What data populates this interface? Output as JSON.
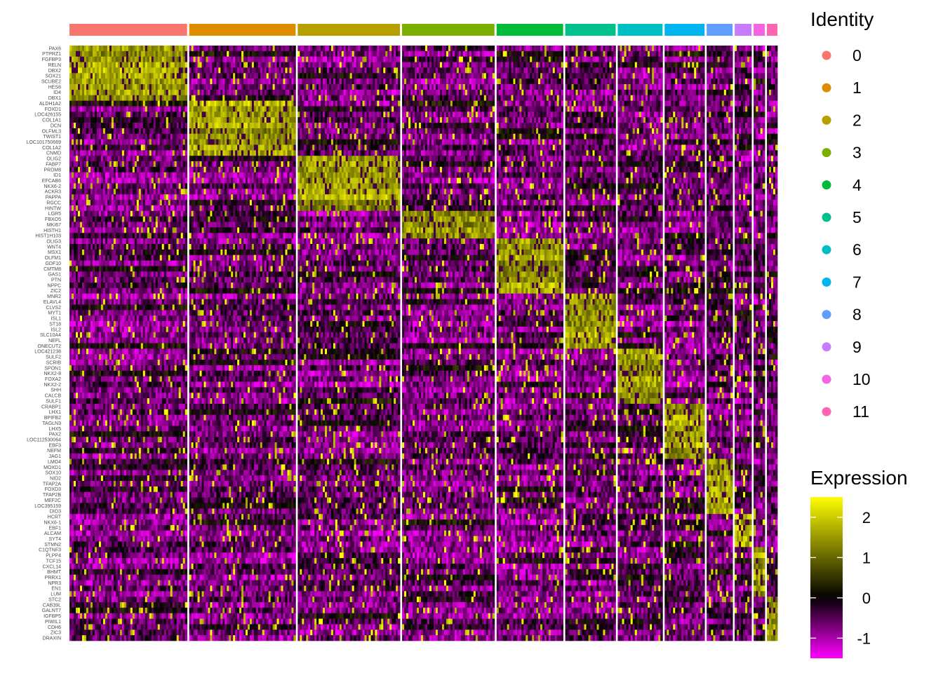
{
  "chart_data": {
    "type": "heatmap",
    "identity_legend_title": "Identity",
    "expression_legend_title": "Expression",
    "clusters": [
      {
        "name": "0",
        "color": "#F8766D",
        "weight": 168
      },
      {
        "name": "1",
        "color": "#DE8C00",
        "weight": 152
      },
      {
        "name": "2",
        "color": "#B79F00",
        "weight": 146
      },
      {
        "name": "3",
        "color": "#7CAE00",
        "weight": 132
      },
      {
        "name": "4",
        "color": "#00BA38",
        "weight": 95
      },
      {
        "name": "5",
        "color": "#00C08B",
        "weight": 72
      },
      {
        "name": "6",
        "color": "#00BFC4",
        "weight": 64
      },
      {
        "name": "7",
        "color": "#00B4F0",
        "weight": 57
      },
      {
        "name": "8",
        "color": "#619CFF",
        "weight": 37
      },
      {
        "name": "9",
        "color": "#C77CFF",
        "weight": 24
      },
      {
        "name": "10",
        "color": "#F564E3",
        "weight": 16
      },
      {
        "name": "11",
        "color": "#FF64B0",
        "weight": 15
      }
    ],
    "genes": [
      "PAX6",
      "PTPRZ1",
      "FGFBP3",
      "RELN",
      "DBX2",
      "SOX21",
      "SCUBE2",
      "HES6",
      "ID4",
      "DBX1",
      "ALDH1A2",
      "FOXD1",
      "LOC426155",
      "COL1A1",
      "DCN",
      "OLFML3",
      "TWIST1",
      "LOC101750669",
      "COL1A2",
      "CNMD",
      "OLIG2",
      "FABP7",
      "PRDM8",
      "ID1",
      "EFCAB6",
      "NKX6-2",
      "ACKR3",
      "PAPPA",
      "RGCC",
      "HINTW",
      "LGR5",
      "FBXO5",
      "MKI67",
      "HISTH1",
      "HIST1H103",
      "OLIG3",
      "WNT4",
      "MSX1",
      "OLFM1",
      "GDF10",
      "CMTM8",
      "GAS1",
      "PTN",
      "NPPC",
      "ZIC2",
      "MNR2",
      "ELAVL4",
      "CLVS2",
      "MYT1",
      "ISL1",
      "ST18",
      "ISL2",
      "SLC10A4",
      "NEFL",
      "ONECUT2",
      "LOC421238",
      "SULF2",
      "SCRIB",
      "SPON1",
      "NKX2-8",
      "FOXA2",
      "NKX2-2",
      "SHH",
      "CALCB",
      "SULF1",
      "CRABP1",
      "LHX1",
      "BPIFB2",
      "TAGLN3",
      "LHX5",
      "PAX2",
      "LOC112530064",
      "EBF3",
      "NEFM",
      "JAG1",
      "LMO4",
      "MOXD1",
      "SOX10",
      "NID2",
      "TFAP2A",
      "FOXD3",
      "TFAP2B",
      "MEF2C",
      "LOC395159",
      "DIO3",
      "HCRT",
      "NKX6-1",
      "EBF1",
      "ALCAM",
      "SYT4",
      "STMN2",
      "C1QTNF3",
      "PLPP4",
      "TCF15",
      "CXCL14",
      "BHMT",
      "PRRX1",
      "NPR3",
      "EN1",
      "LUM",
      "STC2",
      "CAB39L",
      "GALNT7",
      "IGFBP5",
      "PIWIL1",
      "CDH6",
      "ZIC3",
      "DRAXIN"
    ],
    "gene_blocks": [
      {
        "cluster": "0",
        "start": 0,
        "count": 10
      },
      {
        "cluster": "1",
        "start": 10,
        "count": 10
      },
      {
        "cluster": "2",
        "start": 20,
        "count": 10
      },
      {
        "cluster": "3",
        "start": 30,
        "count": 5
      },
      {
        "cluster": "4",
        "start": 35,
        "count": 10
      },
      {
        "cluster": "5",
        "start": 45,
        "count": 10
      },
      {
        "cluster": "6",
        "start": 55,
        "count": 10
      },
      {
        "cluster": "7",
        "start": 65,
        "count": 10
      },
      {
        "cluster": "8",
        "start": 75,
        "count": 10
      },
      {
        "cluster": "9",
        "start": 85,
        "count": 6
      },
      {
        "cluster": "10",
        "start": 91,
        "count": 9
      },
      {
        "cluster": "11",
        "start": 100,
        "count": 8
      }
    ],
    "color_scale": {
      "low": "#FF00FF",
      "mid": "#000000",
      "high": "#FFFF00",
      "min": -1.5,
      "mid_value": 0,
      "max": 2.5,
      "ticks": [
        "2",
        "1",
        "0",
        "-1"
      ],
      "tick_values": [
        2,
        1,
        0,
        -1
      ]
    }
  }
}
